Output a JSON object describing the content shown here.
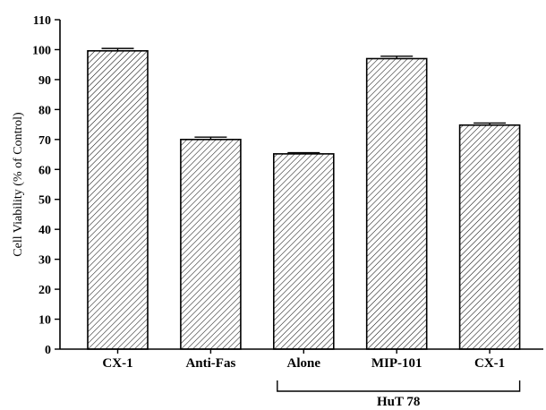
{
  "chart_data": {
    "type": "bar",
    "categories": [
      "CX-1",
      "Anti-Fas",
      "Alone",
      "MIP-101",
      "CX-1"
    ],
    "values": [
      99.6,
      70.0,
      65.2,
      97.0,
      74.8
    ],
    "errors": [
      0.8,
      0.8,
      0.4,
      0.8,
      0.7
    ],
    "ylabel": "Cell Viability (% of Control)",
    "ylim": [
      0,
      110
    ],
    "ytick_step": 10,
    "grid": false,
    "groups": [
      {
        "label": "HuT 78",
        "start": 2,
        "end": 4
      }
    ],
    "colors": {
      "bar_fill": "#ffffff",
      "hatch": "#000000",
      "axis": "#000000"
    }
  }
}
